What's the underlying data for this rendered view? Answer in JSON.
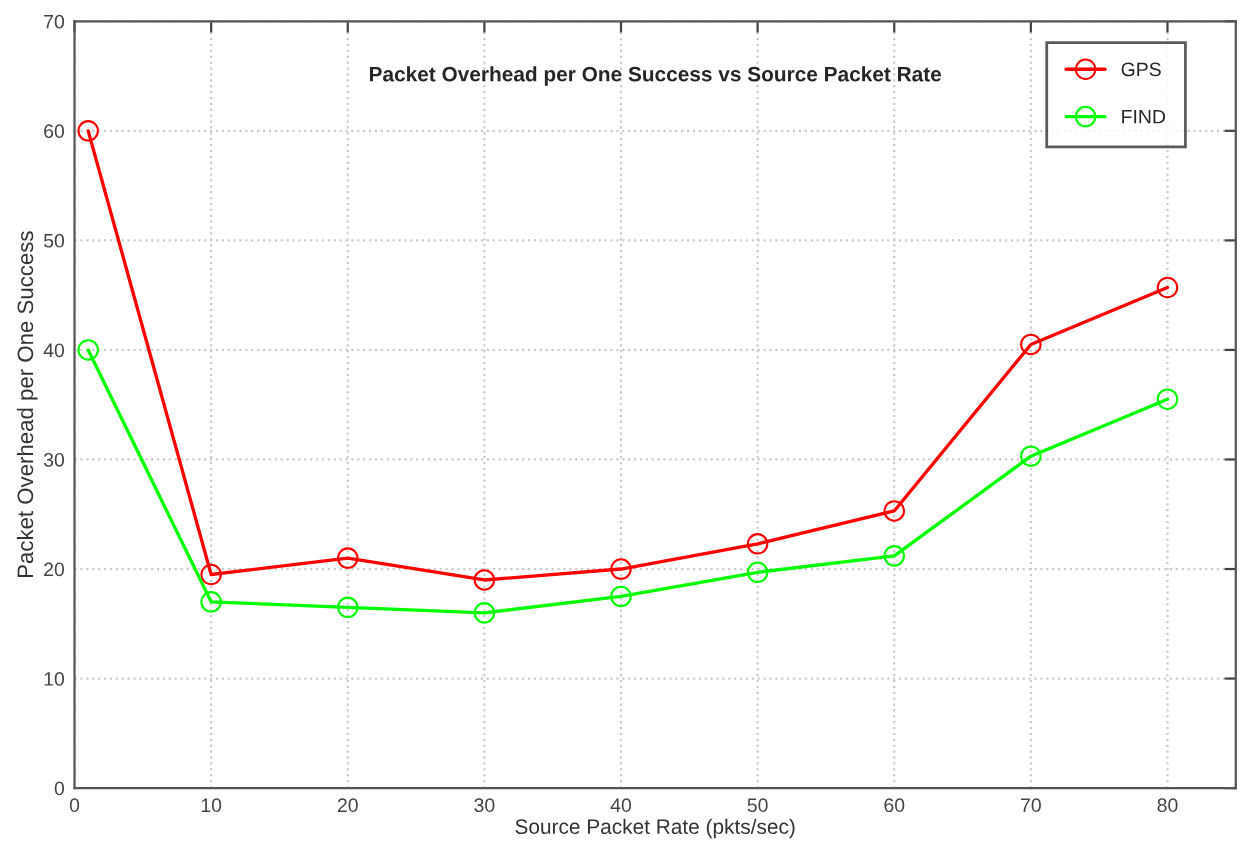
{
  "chart_data": {
    "type": "line",
    "title": "Packet Overhead per One Success vs Source Packet Rate",
    "xlabel": "Source Packet Rate (pkts/sec)",
    "ylabel": "Packet Overhead per One Success",
    "x": [
      1,
      10,
      20,
      30,
      40,
      50,
      60,
      70,
      80
    ],
    "series": [
      {
        "name": "GPS",
        "color": "#ff0000",
        "values": [
          60,
          19.5,
          21,
          19,
          20,
          22.3,
          25.3,
          40.5,
          45.7
        ]
      },
      {
        "name": "FIND",
        "color": "#00ff00",
        "values": [
          40,
          17,
          16.5,
          16,
          17.5,
          19.7,
          21.2,
          30.3,
          35.5
        ]
      }
    ],
    "xlim": [
      0,
      85
    ],
    "xticks": [
      0,
      10,
      20,
      30,
      40,
      50,
      60,
      70,
      80
    ],
    "ylim": [
      0,
      70
    ],
    "yticks": [
      0,
      10,
      20,
      30,
      40,
      50,
      60,
      70
    ],
    "grid": true,
    "legend": "top right",
    "marker": "circle",
    "line_style": "solid"
  }
}
